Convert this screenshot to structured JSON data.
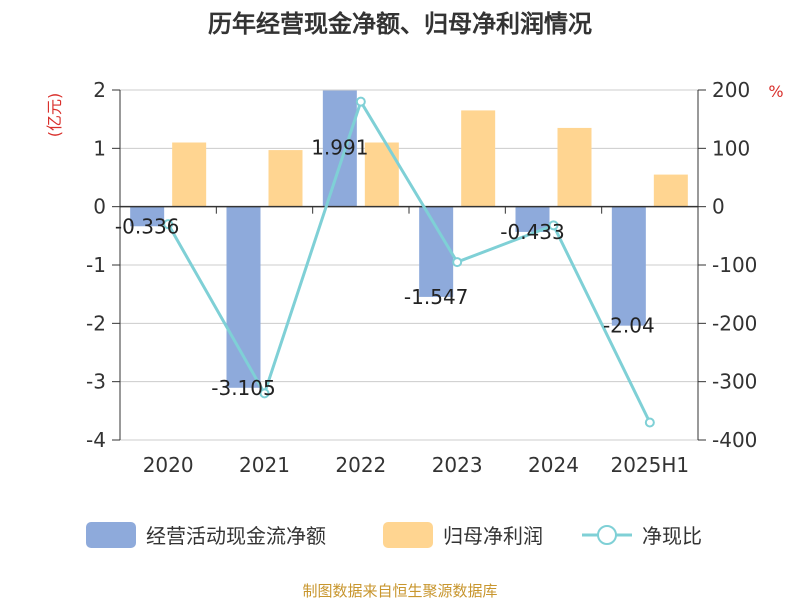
{
  "chart_data": {
    "type": "bar",
    "title": "历年经营现金净额、归母净利润情况",
    "categories": [
      "2020",
      "2021",
      "2022",
      "2023",
      "2024",
      "2025H1"
    ],
    "left_axis": {
      "unit": "(亿元)",
      "ylim": [
        -4,
        2
      ],
      "ticks": [
        "2",
        "1",
        "0",
        "-1",
        "-2",
        "-3",
        "-4"
      ]
    },
    "right_axis": {
      "unit": "%",
      "ylim": [
        -400,
        200
      ],
      "ticks": [
        "200",
        "100",
        "0",
        "-100",
        "-200",
        "-300",
        "-400"
      ]
    },
    "series": [
      {
        "name": "经营活动现金流净额",
        "type": "bar",
        "axis": "left",
        "color": "#8eaadb",
        "values": [
          -0.336,
          -3.105,
          1.991,
          -1.547,
          -0.433,
          -2.04
        ],
        "labels": [
          "-0.336",
          "-3.105",
          "1.991",
          "-1.547",
          "-0.433",
          "-2.04"
        ]
      },
      {
        "name": "归母净利润",
        "type": "bar",
        "axis": "left",
        "color": "#ffd591",
        "values": [
          1.1,
          0.97,
          1.1,
          1.65,
          1.35,
          0.55
        ]
      },
      {
        "name": "净现比",
        "type": "line",
        "axis": "right",
        "color": "#7fd0d6",
        "values": [
          -30,
          -320,
          180,
          -95,
          -32,
          -370
        ]
      }
    ],
    "grid": true,
    "legend": "bottom"
  },
  "footer": {
    "source": "制图数据来自恒生聚源数据库"
  }
}
